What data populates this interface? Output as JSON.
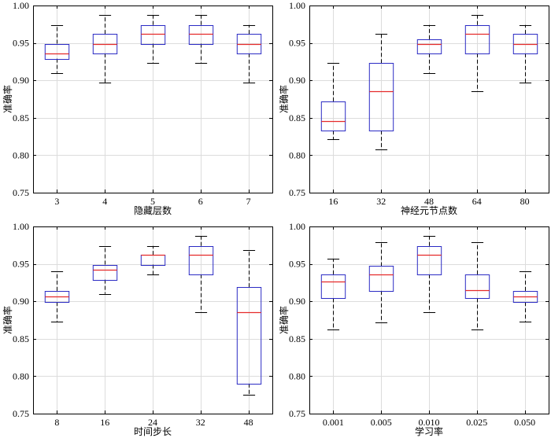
{
  "colors": {
    "box": "#2b2bc4",
    "median": "#e52b2b",
    "whisker": "#000000",
    "cap": "#000000",
    "grid": "#dcdcdc",
    "frame": "#000000"
  },
  "chart_data": [
    {
      "type": "boxplot",
      "xlabel": "隐藏层数",
      "ylabel": "准确率",
      "ylim": [
        0.75,
        1.0
      ],
      "yticks": [
        0.75,
        0.8,
        0.85,
        0.9,
        0.95,
        1.0
      ],
      "ytick_labels": [
        "0.75",
        "0.80",
        "0.85",
        "0.90",
        "0.95",
        "1.00"
      ],
      "categories": [
        "3",
        "4",
        "5",
        "6",
        "7"
      ],
      "grid": true,
      "boxes": [
        {
          "whislo": 0.91,
          "q1": 0.929,
          "med": 0.936,
          "q3": 0.949,
          "whishi": 0.974
        },
        {
          "whislo": 0.897,
          "q1": 0.936,
          "med": 0.949,
          "q3": 0.962,
          "whishi": 0.987
        },
        {
          "whislo": 0.923,
          "q1": 0.949,
          "med": 0.962,
          "q3": 0.974,
          "whishi": 0.987
        },
        {
          "whislo": 0.923,
          "q1": 0.949,
          "med": 0.962,
          "q3": 0.974,
          "whishi": 0.987
        },
        {
          "whislo": 0.897,
          "q1": 0.936,
          "med": 0.949,
          "q3": 0.962,
          "whishi": 0.974
        }
      ]
    },
    {
      "type": "boxplot",
      "xlabel": "神经元节点数",
      "ylabel": "准确率",
      "ylim": [
        0.75,
        1.0
      ],
      "yticks": [
        0.75,
        0.8,
        0.85,
        0.9,
        0.95,
        1.0
      ],
      "ytick_labels": [
        "0.75",
        "0.80",
        "0.85",
        "0.90",
        "0.95",
        "1.00"
      ],
      "categories": [
        "16",
        "32",
        "48",
        "64",
        "80"
      ],
      "grid": true,
      "boxes": [
        {
          "whislo": 0.821,
          "q1": 0.833,
          "med": 0.846,
          "q3": 0.872,
          "whishi": 0.923
        },
        {
          "whislo": 0.808,
          "q1": 0.833,
          "med": 0.885,
          "q3": 0.923,
          "whishi": 0.962
        },
        {
          "whislo": 0.91,
          "q1": 0.936,
          "med": 0.949,
          "q3": 0.955,
          "whishi": 0.974
        },
        {
          "whislo": 0.885,
          "q1": 0.936,
          "med": 0.962,
          "q3": 0.974,
          "whishi": 0.987
        },
        {
          "whislo": 0.897,
          "q1": 0.936,
          "med": 0.949,
          "q3": 0.962,
          "whishi": 0.974
        }
      ]
    },
    {
      "type": "boxplot",
      "xlabel": "时间步长",
      "ylabel": "准确率",
      "ylim": [
        0.75,
        1.0
      ],
      "yticks": [
        0.75,
        0.8,
        0.85,
        0.9,
        0.95,
        1.0
      ],
      "ytick_labels": [
        "0.75",
        "0.80",
        "0.85",
        "0.90",
        "0.95",
        "1.00"
      ],
      "categories": [
        "8",
        "16",
        "24",
        "32",
        "48"
      ],
      "grid": true,
      "boxes": [
        {
          "whislo": 0.873,
          "q1": 0.899,
          "med": 0.907,
          "q3": 0.914,
          "whishi": 0.94
        },
        {
          "whislo": 0.91,
          "q1": 0.929,
          "med": 0.942,
          "q3": 0.949,
          "whishi": 0.974
        },
        {
          "whislo": 0.936,
          "q1": 0.949,
          "med": 0.962,
          "q3": 0.962,
          "whishi": 0.974
        },
        {
          "whislo": 0.885,
          "q1": 0.936,
          "med": 0.962,
          "q3": 0.974,
          "whishi": 0.987
        },
        {
          "whislo": 0.775,
          "q1": 0.79,
          "med": 0.886,
          "q3": 0.919,
          "whishi": 0.968
        }
      ]
    },
    {
      "type": "boxplot",
      "xlabel": "学习率",
      "ylabel": "准确率",
      "ylim": [
        0.75,
        1.0
      ],
      "yticks": [
        0.75,
        0.8,
        0.85,
        0.9,
        0.95,
        1.0
      ],
      "ytick_labels": [
        "0.75",
        "0.80",
        "0.85",
        "0.90",
        "0.95",
        "1.00"
      ],
      "categories": [
        "0.001",
        "0.005",
        "0.010",
        "0.025",
        "0.050"
      ],
      "grid": true,
      "boxes": [
        {
          "whislo": 0.862,
          "q1": 0.904,
          "med": 0.926,
          "q3": 0.936,
          "whishi": 0.957
        },
        {
          "whislo": 0.872,
          "q1": 0.914,
          "med": 0.936,
          "q3": 0.947,
          "whishi": 0.979
        },
        {
          "whislo": 0.885,
          "q1": 0.936,
          "med": 0.962,
          "q3": 0.974,
          "whishi": 0.987
        },
        {
          "whislo": 0.862,
          "q1": 0.904,
          "med": 0.915,
          "q3": 0.936,
          "whishi": 0.979
        },
        {
          "whislo": 0.873,
          "q1": 0.899,
          "med": 0.907,
          "q3": 0.914,
          "whishi": 0.94
        }
      ]
    }
  ]
}
